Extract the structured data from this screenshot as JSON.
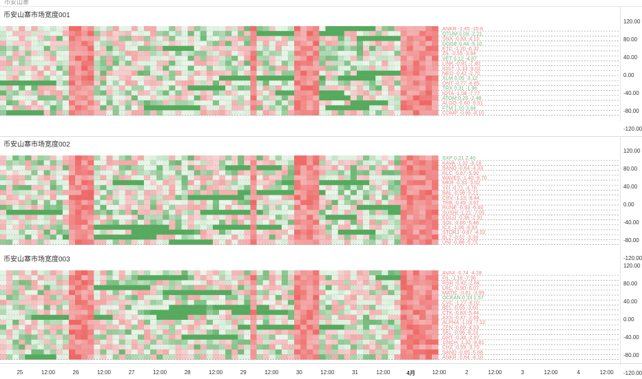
{
  "header": {
    "text": "币安山寨"
  },
  "panels": [
    {
      "title": "币安山寨市场宽度001",
      "ticks": [
        "120.00",
        "80.00",
        "40.00",
        "0.00",
        "-40.00",
        "-80.00",
        "-120.00"
      ],
      "band_labels": [
        "ANKR -1.45 -15.6",
        "QTUM 0.09 -2.21",
        "SNX -0.83 -4.10",
        "DOGE 0.44 -5.10",
        "ETC -1.20 -6.32",
        "ZIL -0.55 -3.94",
        "VET 0.12 -4.87",
        "LINK -0.91 -7.40",
        "IOST -1.33 -9.02",
        "NEO -0.42 -2.70",
        "XLM 0.05 -3.12",
        "ONT -0.77 -6.85",
        "TRX 0.31 -1.96",
        "IOTA -1.08 -7.77",
        "ATOM 0.26 -2.48",
        "ALGO -0.60 -5.51",
        "FTM 1.10 3.44",
        "COMP -0.95 -8.10"
      ]
    },
    {
      "title": "币安山寨市场宽度002",
      "ticks": [
        "120.00",
        "80.00",
        "40.00",
        "0.00",
        "-40.00",
        "-80.00",
        "-120.00"
      ],
      "band_labels": [
        "SXP 0.21 2.40",
        "KAVA -1.02 -6.18",
        "BAND -0.64 -4.33",
        "RLC -0.87 -5.90",
        "WAVES -1.40 -9.70",
        "MKR -0.33 -3.02",
        "YFI -0.71 -4.76",
        "BAL -0.58 -5.21",
        "CRV -1.15 -8.44",
        "TRB -0.49 -3.67",
        "RUNE -0.93 -6.60",
        "SUSHI -1.21 -7.05",
        "EGLD -0.36 -2.91",
        "SOL -0.80 -5.48",
        "ICX -1.06 -6.93",
        "STORJ -0.67 -4.02",
        "BLZ -0.52 -3.39",
        "UNI -0.88 -5.75"
      ]
    },
    {
      "title": "币安山寨市场宽度003",
      "ticks": [
        "120.00",
        "80.00",
        "40.00",
        "0.00",
        "-40.00",
        "-80.00",
        "-120.00"
      ],
      "band_labels": [
        "AVAX -0.74 -4.28",
        "FIL -1.18 -7.36",
        "RSR -0.42 -2.84",
        "LRC -0.90 -6.07",
        "MATIC -0.61 -3.95",
        "OCEAN 0.33 1.57",
        "CVC -1.27 -8.02",
        "BEL -0.55 -3.60",
        "CTK -0.83 -5.44",
        "AXS -0.47 -2.66",
        "ALPHA -1.09 -7.12",
        "ZEN -0.69 -4.53",
        "SKL -0.96 -6.24",
        "GRT -0.38 -2.97",
        "1INCH -1.32 -8.81",
        "CHZ -0.59 -3.70",
        "SAND -0.85 -5.66",
        "ANKR -0.64 -4.10"
      ]
    }
  ],
  "xaxis": {
    "labels": [
      {
        "text": "25",
        "bold": false,
        "frac": 0.031
      },
      {
        "text": "12:00",
        "bold": false,
        "frac": 0.075
      },
      {
        "text": "26",
        "bold": false,
        "frac": 0.118
      },
      {
        "text": "12:00",
        "bold": false,
        "frac": 0.162
      },
      {
        "text": "27",
        "bold": false,
        "frac": 0.205
      },
      {
        "text": "12:00",
        "bold": false,
        "frac": 0.249
      },
      {
        "text": "28",
        "bold": false,
        "frac": 0.292
      },
      {
        "text": "12:00",
        "bold": false,
        "frac": 0.336
      },
      {
        "text": "29",
        "bold": false,
        "frac": 0.379
      },
      {
        "text": "12:00",
        "bold": false,
        "frac": 0.423
      },
      {
        "text": "30",
        "bold": false,
        "frac": 0.466
      },
      {
        "text": "12:00",
        "bold": false,
        "frac": 0.51
      },
      {
        "text": "31",
        "bold": false,
        "frac": 0.553
      },
      {
        "text": "12:00",
        "bold": false,
        "frac": 0.597
      },
      {
        "text": "4月",
        "bold": true,
        "frac": 0.64
      },
      {
        "text": "12:00",
        "bold": false,
        "frac": 0.684
      },
      {
        "text": "2",
        "bold": false,
        "frac": 0.727
      },
      {
        "text": "12:00",
        "bold": false,
        "frac": 0.771
      },
      {
        "text": "3",
        "bold": false,
        "frac": 0.814
      },
      {
        "text": "12:00",
        "bold": false,
        "frac": 0.858
      },
      {
        "text": "4",
        "bold": false,
        "frac": 0.901
      },
      {
        "text": "12:00",
        "bold": false,
        "frac": 0.945
      }
    ]
  },
  "colors": {
    "up_strong": "#3d9f46",
    "up_light": "#dcefdc",
    "down_strong": "#ef5350",
    "down_light": "#f6d3d3",
    "grid": "#9a9a9a"
  },
  "chart_data": {
    "type": "heatmap",
    "series_count": 3,
    "rows_per_panel": 18,
    "yrange": [
      -120,
      120
    ],
    "note_columns": 70,
    "red_bands_at": [
      "26",
      "29",
      "30",
      "4月"
    ]
  }
}
